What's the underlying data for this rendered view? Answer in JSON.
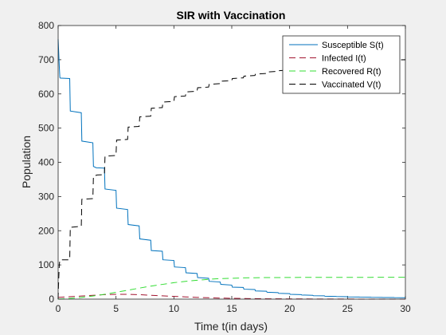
{
  "chart_data": {
    "type": "line",
    "title": "SIR with Vaccination",
    "xlabel": "Time t(in days)",
    "ylabel": "Population",
    "xlim": [
      0,
      30
    ],
    "ylim": [
      0,
      800
    ],
    "xticks": [
      0,
      5,
      10,
      15,
      20,
      25,
      30
    ],
    "xtick_labels": [
      "0",
      "5",
      "10",
      "15",
      "20",
      "25",
      "30"
    ],
    "yticks": [
      0,
      100,
      200,
      300,
      400,
      500,
      600,
      700,
      800
    ],
    "ytick_labels": [
      "0",
      "100",
      "200",
      "300",
      "400",
      "500",
      "600",
      "700",
      "800"
    ],
    "grid": false,
    "legend_position": "top-right",
    "series": [
      {
        "name": "Susceptible S(t)",
        "color": "#0072bd",
        "dash": "solid",
        "x": [
          0,
          0.05,
          0.1,
          0.15,
          0.2,
          0.3,
          1,
          1.05,
          2,
          2.05,
          3,
          3.05,
          3.3,
          4,
          4.05,
          5,
          5.05,
          6,
          6.05,
          7,
          7.05,
          8,
          8.05,
          9,
          9.05,
          10,
          10.05,
          11,
          11.05,
          12,
          12.05,
          13,
          13.05,
          14,
          14.05,
          15,
          15.05,
          16,
          16.05,
          17,
          17.05,
          18,
          18.05,
          19,
          19.05,
          20,
          20.05,
          21,
          21.05,
          22,
          22.05,
          23,
          23.05,
          24,
          24.05,
          25,
          25.05,
          26,
          26.05,
          27,
          27.05,
          28,
          28.05,
          29,
          29.05,
          30
        ],
        "y": [
          760,
          720,
          680,
          648,
          646,
          646,
          645,
          550,
          545,
          462,
          457,
          388,
          384,
          383,
          322,
          318,
          266,
          262,
          218,
          214,
          176,
          172,
          142,
          140,
          115,
          113,
          94,
          92,
          77,
          75,
          63,
          61,
          52,
          50,
          43,
          41,
          35,
          34,
          29,
          28,
          24,
          23,
          20,
          19,
          17,
          16,
          14,
          13,
          12,
          11,
          10,
          9.5,
          8.5,
          8,
          7.5,
          7,
          6.5,
          6,
          5.8,
          5.5,
          5.2,
          5,
          4.8,
          4.6,
          4.4,
          4.2
        ]
      },
      {
        "name": "Infected I(t)",
        "color": "#a2142f",
        "dash": "long-dash",
        "x": [
          0,
          1,
          2,
          3,
          4,
          5,
          6,
          7,
          8,
          9,
          10,
          11,
          12,
          13,
          14,
          15,
          16,
          17,
          18,
          19,
          20,
          21,
          22,
          23,
          24,
          25,
          26,
          27,
          28,
          29,
          30
        ],
        "y": [
          5,
          7,
          9,
          11,
          13,
          14,
          14,
          13,
          11,
          9.5,
          8,
          6.5,
          5,
          4,
          3,
          2.3,
          1.8,
          1.4,
          1,
          0.8,
          0.6,
          0.5,
          0.4,
          0.3,
          0.25,
          0.2,
          0.15,
          0.1,
          0.1,
          0.1,
          0.1
        ]
      },
      {
        "name": "Recovered R(t)",
        "color": "#33dd33",
        "dash": "long-dash",
        "x": [
          0,
          1,
          2,
          3,
          4,
          5,
          6,
          7,
          8,
          9,
          10,
          11,
          12,
          13,
          14,
          15,
          16,
          17,
          18,
          19,
          20,
          21,
          22,
          23,
          24,
          25,
          26,
          27,
          28,
          29,
          30
        ],
        "y": [
          0,
          2,
          5,
          9,
          14,
          20,
          26,
          32,
          38,
          43,
          48,
          52,
          55,
          58,
          60,
          61,
          62,
          62.5,
          63,
          63,
          63.3,
          63.5,
          63.5,
          63.6,
          63.6,
          63.7,
          63.7,
          63.7,
          63.8,
          63.8,
          63.8
        ]
      },
      {
        "name": "Vaccinated V(t)",
        "color": "#000000",
        "dash": "long-dash",
        "x": [
          0,
          0.05,
          0.1,
          0.15,
          1,
          1.05,
          2,
          2.05,
          3,
          3.05,
          3.3,
          3.35,
          4,
          4.05,
          5,
          5.05,
          6,
          6.05,
          7,
          7.05,
          8,
          8.05,
          9,
          9.05,
          10,
          10.05,
          11,
          11.05,
          12,
          12.05,
          13,
          13.05,
          14,
          14.05,
          15,
          15.05,
          16,
          16.05,
          17,
          17.05,
          18,
          18.05,
          19,
          19.05,
          20,
          20.05,
          21,
          21.05,
          22,
          22.05,
          23,
          23.05,
          24,
          24.05,
          25,
          25.05,
          26,
          26.05,
          27,
          27.05,
          28,
          28.05,
          29,
          29.05,
          30
        ],
        "y": [
          0,
          60,
          100,
          115,
          115,
          210,
          213,
          292,
          294,
          360,
          362,
          363,
          364,
          418,
          420,
          465,
          467,
          503,
          505,
          533,
          535,
          558,
          560,
          576,
          578,
          592,
          594,
          606,
          608,
          618,
          620,
          628,
          630,
          637,
          639,
          645,
          647,
          652,
          654,
          658,
          660,
          664,
          666,
          668,
          670,
          672,
          674,
          676,
          678,
          680,
          682,
          684,
          686,
          688,
          690,
          691,
          692,
          693,
          694,
          695,
          696,
          697,
          698,
          699,
          700
        ]
      }
    ]
  }
}
